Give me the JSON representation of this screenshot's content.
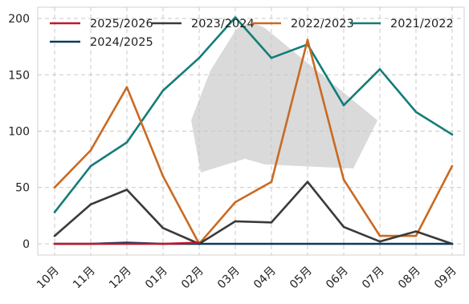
{
  "chart_data": {
    "type": "line",
    "categories": [
      "10月",
      "11月",
      "12月",
      "01月",
      "02月",
      "03月",
      "04月",
      "05月",
      "06月",
      "07月",
      "08月",
      "09月"
    ],
    "ylim": [
      -10,
      210
    ],
    "yticks": [
      0,
      50,
      100,
      150,
      200
    ],
    "grid": true,
    "legend": {
      "placement": "top-left",
      "columns": 4
    },
    "series": [
      {
        "name": "2025/2026",
        "color": "#c0182b",
        "values": [
          0,
          0,
          0,
          0,
          1,
          null,
          null,
          null,
          null,
          null,
          null,
          null
        ]
      },
      {
        "name": "2024/2025",
        "color": "#0d3a5c",
        "values": [
          0,
          0,
          1,
          0,
          0,
          0,
          0,
          0,
          0,
          0,
          0,
          0
        ]
      },
      {
        "name": "2023/2024",
        "color": "#3a3a3a",
        "values": [
          7,
          35,
          48,
          14,
          0,
          20,
          19,
          55,
          15,
          2,
          11,
          0
        ]
      },
      {
        "name": "2022/2023",
        "color": "#c96a22",
        "values": [
          50,
          83,
          139,
          60,
          0,
          37,
          55,
          181,
          57,
          7,
          7,
          69
        ]
      },
      {
        "name": "2021/2022",
        "color": "#137d78",
        "values": [
          28,
          69,
          90,
          136,
          165,
          201,
          165,
          177,
          123,
          155,
          117,
          97
        ]
      }
    ]
  }
}
